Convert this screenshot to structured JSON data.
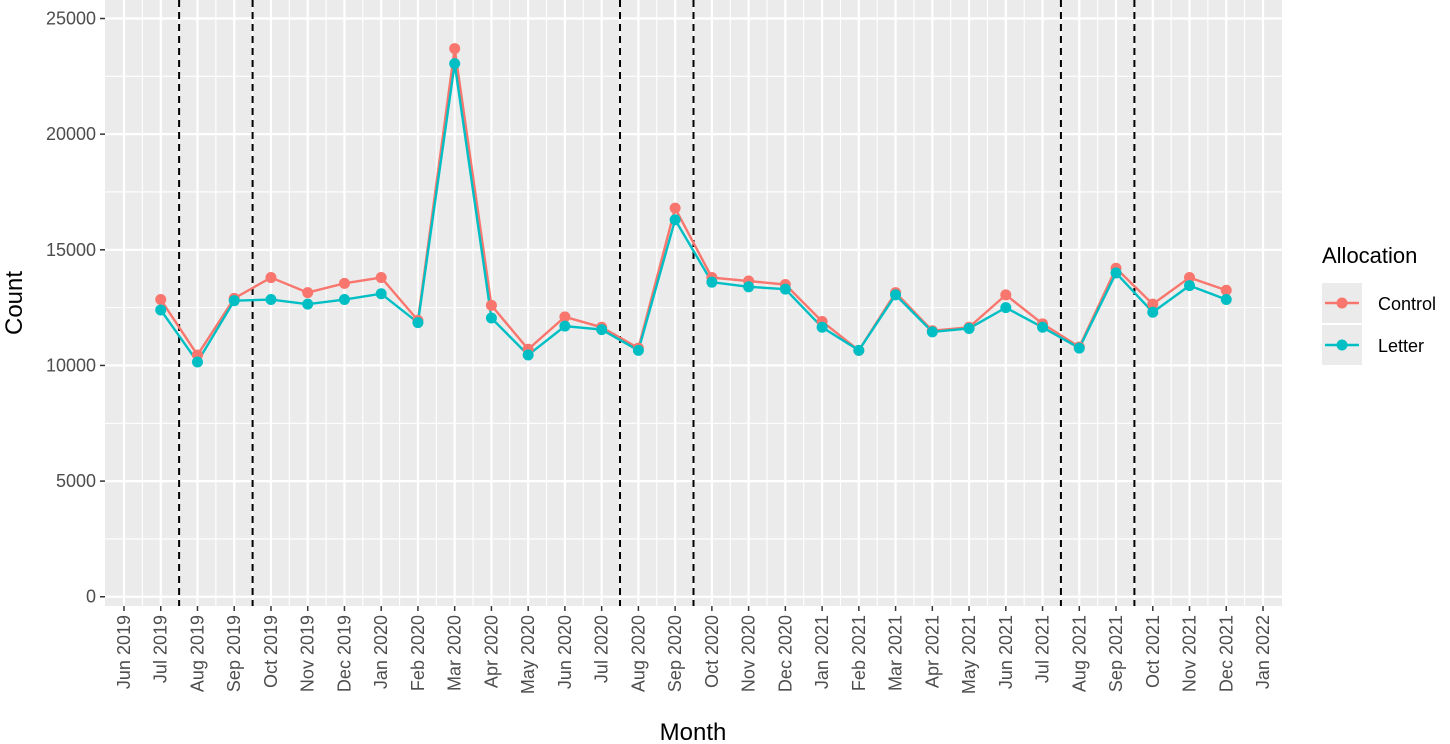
{
  "chart_data": {
    "type": "line",
    "xlabel": "Month",
    "ylabel": "Count",
    "x_ticks": [
      "Jun 2019",
      "Jul 2019",
      "Aug 2019",
      "Sep 2019",
      "Oct 2019",
      "Nov 2019",
      "Dec 2019",
      "Jan 2020",
      "Feb 2020",
      "Mar 2020",
      "Apr 2020",
      "May 2020",
      "Jun 2020",
      "Jul 2020",
      "Aug 2020",
      "Sep 2020",
      "Oct 2020",
      "Nov 2020",
      "Dec 2020",
      "Jan 2021",
      "Feb 2021",
      "Mar 2021",
      "Apr 2021",
      "May 2021",
      "Jun 2021",
      "Jul 2021",
      "Aug 2021",
      "Sep 2021",
      "Oct 2021",
      "Nov 2021",
      "Dec 2021",
      "Jan 2022"
    ],
    "y_ticks": [
      0,
      5000,
      10000,
      15000,
      20000,
      25000
    ],
    "ylim": [
      -400,
      25800
    ],
    "grid": true,
    "categories": [
      "Jul 2019",
      "Aug 2019",
      "Sep 2019",
      "Oct 2019",
      "Nov 2019",
      "Dec 2019",
      "Jan 2020",
      "Feb 2020",
      "Mar 2020",
      "Apr 2020",
      "May 2020",
      "Jun 2020",
      "Jul 2020",
      "Aug 2020",
      "Sep 2020",
      "Oct 2020",
      "Nov 2020",
      "Dec 2020",
      "Jan 2021",
      "Feb 2021",
      "Mar 2021",
      "Apr 2021",
      "May 2021",
      "Jun 2021",
      "Jul 2021",
      "Aug 2021",
      "Sep 2021",
      "Oct 2021",
      "Nov 2021",
      "Dec 2021"
    ],
    "series": [
      {
        "name": "Control",
        "color": "#F8766D",
        "values": [
          12850,
          10450,
          12900,
          13800,
          13150,
          13550,
          13800,
          11950,
          23700,
          12600,
          10700,
          12100,
          11650,
          10750,
          16800,
          13800,
          13650,
          13500,
          11900,
          10650,
          13150,
          11500,
          11650,
          13050,
          11800,
          10800,
          14200,
          12650,
          13800,
          13250
        ]
      },
      {
        "name": "Letter",
        "color": "#00BFC4",
        "values": [
          12400,
          10150,
          12800,
          12850,
          12650,
          12850,
          13100,
          11850,
          23050,
          12050,
          10450,
          11700,
          11550,
          10650,
          16300,
          13600,
          13400,
          13300,
          11650,
          10650,
          13050,
          11450,
          11600,
          12500,
          11650,
          10750,
          14000,
          12300,
          13450,
          12850
        ]
      }
    ],
    "vlines_dashed": [
      "Jul 2019",
      "Sep 2019",
      "Jul 2020",
      "Sep 2020",
      "Jul 2021",
      "Sep 2021"
    ],
    "legend": {
      "title": "Allocation",
      "position": "right",
      "entries": [
        "Control",
        "Letter"
      ]
    },
    "panel_background": "#EBEBEB",
    "grid_color": "#FFFFFF"
  }
}
